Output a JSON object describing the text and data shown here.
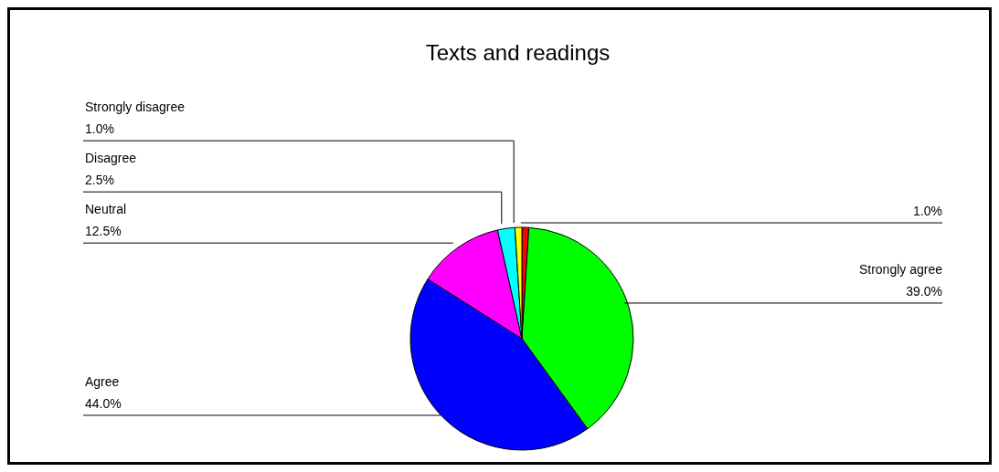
{
  "chart_data": {
    "type": "pie",
    "title": "Texts and readings",
    "categories": [
      null,
      "Strongly agree",
      "Agree",
      "Neutral",
      "Disagree",
      "Strongly disagree"
    ],
    "values": [
      1.0,
      39.0,
      44.0,
      12.5,
      2.5,
      1.0
    ],
    "value_labels": [
      "1.0%",
      "39.0%",
      "44.0%",
      "12.5%",
      "2.5%",
      "1.0%"
    ],
    "colors": [
      "#ff0000",
      "#00ff00",
      "#0000ff",
      "#ff00ff",
      "#00ffff",
      "#ffff00"
    ]
  }
}
